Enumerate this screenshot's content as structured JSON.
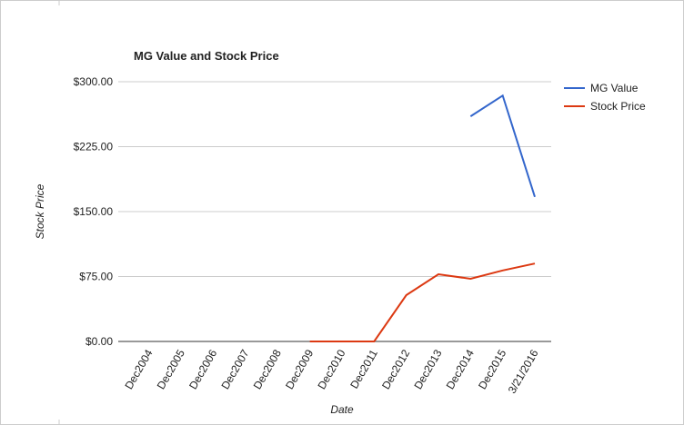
{
  "chart_data": {
    "type": "line",
    "title": "MG Value and Stock Price",
    "x_label": "Date",
    "y_label": "Stock Price",
    "categories": [
      "Dec2004",
      "Dec2005",
      "Dec2006",
      "Dec2007",
      "Dec2008",
      "Dec2009",
      "Dec2010",
      "Dec2011",
      "Dec2012",
      "Dec2013",
      "Dec2014",
      "Dec2015",
      "3/21/2016"
    ],
    "series": [
      {
        "name": "MG Value",
        "color": "#3366cc",
        "values": [
          null,
          null,
          null,
          null,
          null,
          null,
          null,
          null,
          null,
          null,
          260,
          284,
          167
        ]
      },
      {
        "name": "Stock Price",
        "color": "#dc3912",
        "values": [
          null,
          null,
          null,
          null,
          null,
          0,
          0,
          0,
          53.5,
          77.6,
          72.4,
          82,
          90
        ]
      }
    ],
    "ylim": [
      0,
      300
    ],
    "yticks": [
      {
        "value": 0,
        "label": "$0.00"
      },
      {
        "value": 75,
        "label": "$75.00"
      },
      {
        "value": 150,
        "label": "$150.00"
      },
      {
        "value": 225,
        "label": "$225.00"
      },
      {
        "value": 300,
        "label": "$300.00"
      }
    ],
    "grid": true,
    "legend": "right"
  }
}
